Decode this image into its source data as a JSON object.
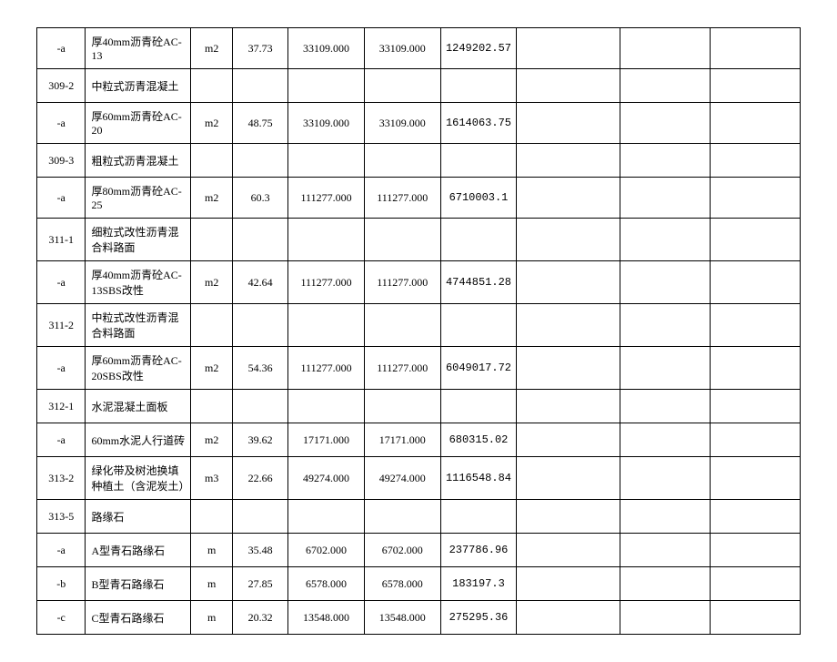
{
  "table": {
    "rows": [
      [
        "-a",
        "厚40mm沥青砼AC-13",
        "m2",
        "37.73",
        "33109.000",
        "33109.000",
        "1249202.57",
        "",
        "",
        ""
      ],
      [
        "309-2",
        "中粒式沥青混凝土",
        "",
        "",
        "",
        "",
        "",
        "",
        "",
        ""
      ],
      [
        "-a",
        "厚60mm沥青砼AC-20",
        "m2",
        "48.75",
        "33109.000",
        "33109.000",
        "1614063.75",
        "",
        "",
        ""
      ],
      [
        "309-3",
        "粗粒式沥青混凝土",
        "",
        "",
        "",
        "",
        "",
        "",
        "",
        ""
      ],
      [
        "-a",
        "厚80mm沥青砼AC-25",
        "m2",
        "60.3",
        "111277.000",
        "111277.000",
        "6710003.1",
        "",
        "",
        ""
      ],
      [
        "311-1",
        "细粒式改性沥青混合料路面",
        "",
        "",
        "",
        "",
        "",
        "",
        "",
        ""
      ],
      [
        "-a",
        "厚40mm沥青砼AC-13SBS改性",
        "m2",
        "42.64",
        "111277.000",
        "111277.000",
        "4744851.28",
        "",
        "",
        ""
      ],
      [
        "311-2",
        "中粒式改性沥青混合料路面",
        "",
        "",
        "",
        "",
        "",
        "",
        "",
        ""
      ],
      [
        "-a",
        "厚60mm沥青砼AC-20SBS改性",
        "m2",
        "54.36",
        "111277.000",
        "111277.000",
        "6049017.72",
        "",
        "",
        ""
      ],
      [
        "312-1",
        "水泥混凝土面板",
        "",
        "",
        "",
        "",
        "",
        "",
        "",
        ""
      ],
      [
        "-a",
        "60mm水泥人行道砖",
        "m2",
        "39.62",
        "17171.000",
        "17171.000",
        "680315.02",
        "",
        "",
        ""
      ],
      [
        "313-2",
        "绿化带及树池换填种植土（含泥炭土）",
        "m3",
        "22.66",
        "49274.000",
        "49274.000",
        "1116548.84",
        "",
        "",
        ""
      ],
      [
        "313-5",
        "路缘石",
        "",
        "",
        "",
        "",
        "",
        "",
        "",
        ""
      ],
      [
        "-a",
        "A型青石路缘石",
        "m",
        "35.48",
        "6702.000",
        "6702.000",
        "237786.96",
        "",
        "",
        ""
      ],
      [
        "-b",
        "B型青石路缘石",
        "m",
        "27.85",
        "6578.000",
        "6578.000",
        "183197.3",
        "",
        "",
        ""
      ],
      [
        "-c",
        "C型青石路缘石",
        "m",
        "20.32",
        "13548.000",
        "13548.000",
        "275295.36",
        "",
        "",
        ""
      ]
    ]
  }
}
